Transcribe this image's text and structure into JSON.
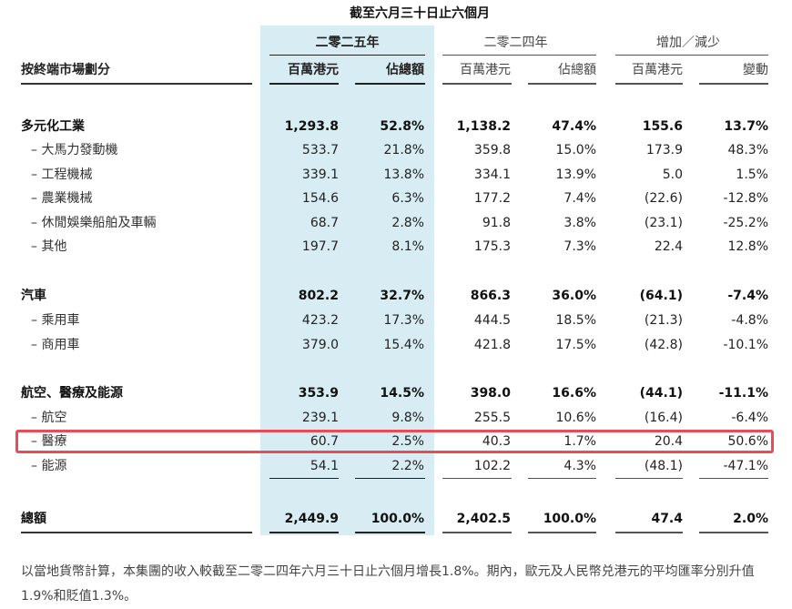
{
  "period_title": "截至六月三十日止六個月",
  "col_groups": {
    "y2025": "二零二五年",
    "y2024": "二零二四年",
    "change": "增加／減少"
  },
  "col_headers": {
    "segment": "按終端市場劃分",
    "hkd_m_2025": "百萬港元",
    "share_2025": "佔總額",
    "hkd_m_2024": "百萬港元",
    "share_2024": "佔總額",
    "hkd_m_change": "百萬港元",
    "pct_change": "變動"
  },
  "rows": [
    {
      "label": "多元化工業",
      "c1": "1,293.8",
      "c2": "52.8%",
      "c3": "1,138.2",
      "c4": "47.4%",
      "c5": "155.6",
      "c6": "13.7%"
    },
    {
      "label": "– 大馬力發動機",
      "c1": "533.7",
      "c2": "21.8%",
      "c3": "359.8",
      "c4": "15.0%",
      "c5": "173.9",
      "c6": "48.3%"
    },
    {
      "label": "– 工程機械",
      "c1": "339.1",
      "c2": "13.8%",
      "c3": "334.1",
      "c4": "13.9%",
      "c5": "5.0",
      "c6": "1.5%"
    },
    {
      "label": "– 農業機械",
      "c1": "154.6",
      "c2": "6.3%",
      "c3": "177.2",
      "c4": "7.4%",
      "c5": "(22.6)",
      "c6": "-12.8%"
    },
    {
      "label": "– 休閒娛樂船舶及車輛",
      "c1": "68.7",
      "c2": "2.8%",
      "c3": "91.8",
      "c4": "3.8%",
      "c5": "(23.1)",
      "c6": "-25.2%"
    },
    {
      "label": "– 其他",
      "c1": "197.7",
      "c2": "8.1%",
      "c3": "175.3",
      "c4": "7.3%",
      "c5": "22.4",
      "c6": "12.8%"
    },
    {
      "label": "汽車",
      "c1": "802.2",
      "c2": "32.7%",
      "c3": "866.3",
      "c4": "36.0%",
      "c5": "(64.1)",
      "c6": "-7.4%"
    },
    {
      "label": "– 乘用車",
      "c1": "423.2",
      "c2": "17.3%",
      "c3": "444.5",
      "c4": "18.5%",
      "c5": "(21.3)",
      "c6": "-4.8%"
    },
    {
      "label": "– 商用車",
      "c1": "379.0",
      "c2": "15.4%",
      "c3": "421.8",
      "c4": "17.5%",
      "c5": "(42.8)",
      "c6": "-10.1%"
    },
    {
      "label": "航空、醫療及能源",
      "c1": "353.9",
      "c2": "14.5%",
      "c3": "398.0",
      "c4": "16.6%",
      "c5": "(44.1)",
      "c6": "-11.1%"
    },
    {
      "label": "– 航空",
      "c1": "239.1",
      "c2": "9.8%",
      "c3": "255.5",
      "c4": "10.6%",
      "c5": "(16.4)",
      "c6": "-6.4%"
    },
    {
      "label": "– 醫療",
      "c1": "60.7",
      "c2": "2.5%",
      "c3": "40.3",
      "c4": "1.7%",
      "c5": "20.4",
      "c6": "50.6%"
    },
    {
      "label": "– 能源",
      "c1": "54.1",
      "c2": "2.2%",
      "c3": "102.2",
      "c4": "4.3%",
      "c5": "(48.1)",
      "c6": "-47.1%"
    },
    {
      "label": "總額",
      "c1": "2,449.9",
      "c2": "100.0%",
      "c3": "2,402.5",
      "c4": "100.0%",
      "c5": "47.4",
      "c6": "2.0%"
    }
  ],
  "note": "以當地貨幣計算，本集團的收入較截至二零二四年六月三十日止六個月增長1.8%。期內，歐元及人民幣兑港元的平均匯率分別升值1.9%和貶值1.3%。"
}
